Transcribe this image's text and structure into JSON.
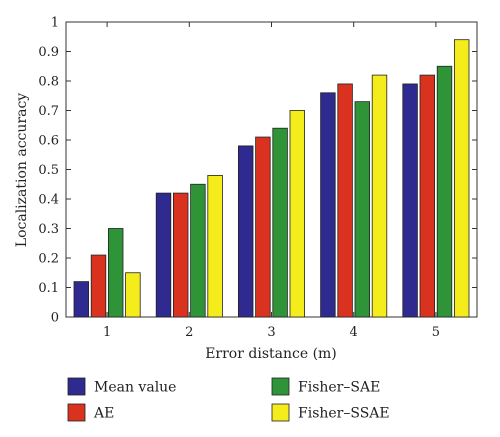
{
  "chart_data": {
    "type": "bar",
    "title": "",
    "xlabel": "Error distance (m)",
    "ylabel": "Localization accuracy",
    "categories": [
      "1",
      "2",
      "3",
      "4",
      "5"
    ],
    "ylim": [
      0,
      1
    ],
    "yticks": [
      "0",
      "0.1",
      "0.2",
      "0.3",
      "0.4",
      "0.5",
      "0.6",
      "0.7",
      "0.8",
      "0.9",
      "1"
    ],
    "grid": false,
    "legend_position": "bottom",
    "series": [
      {
        "name": "Mean value",
        "color": "#2e2a8f",
        "values": [
          0.12,
          0.42,
          0.58,
          0.76,
          0.79
        ]
      },
      {
        "name": "AE",
        "color": "#d9321f",
        "values": [
          0.21,
          0.42,
          0.61,
          0.79,
          0.82
        ]
      },
      {
        "name": "Fisher–SAE",
        "color": "#2f9438",
        "values": [
          0.3,
          0.45,
          0.64,
          0.73,
          0.85
        ]
      },
      {
        "name": "Fisher–SSAE",
        "color": "#f5ec1c",
        "values": [
          0.15,
          0.48,
          0.7,
          0.82,
          0.94
        ]
      }
    ]
  }
}
